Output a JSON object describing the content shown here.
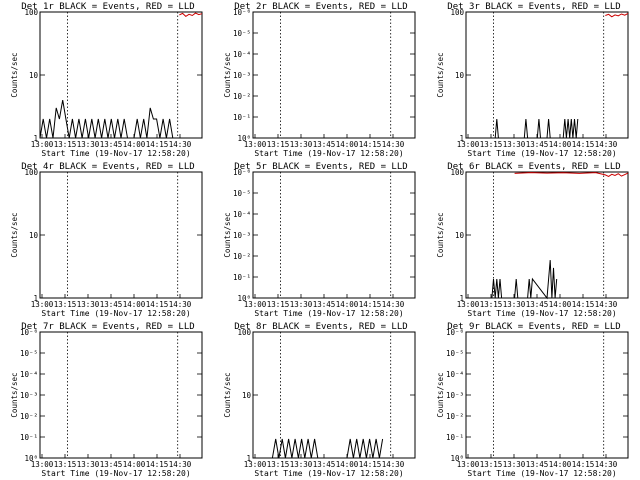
{
  "chart_data": [
    {
      "type": "line",
      "title": "Det 1r BLACK = Events, RED = LLD",
      "xlabel": "Start Time (19-Nov-17 12:58:20)",
      "ylabel": "Counts/sec",
      "yscale": "log",
      "yticks": [
        "1",
        "10",
        "100"
      ],
      "xticks": [
        "13:00",
        "13:15",
        "13:30",
        "13:45",
        "14:00",
        "14:15",
        "14:30"
      ],
      "ylim": [
        1,
        100
      ],
      "xlim": [
        0,
        100
      ],
      "grid": false,
      "series": [
        {
          "name": "Events",
          "color": "#000000",
          "x": [
            0,
            2,
            4,
            6,
            8,
            10,
            12,
            14,
            16,
            18,
            20,
            22,
            24,
            26,
            28,
            30,
            32,
            34,
            36,
            38,
            40,
            42,
            44,
            46,
            48,
            50,
            52,
            54,
            56,
            58,
            60,
            62,
            64,
            66,
            68,
            70,
            72,
            74,
            76,
            78,
            80,
            82,
            84,
            86
          ],
          "y": [
            1,
            2,
            1,
            2,
            1,
            3,
            2,
            4,
            2,
            1,
            2,
            1,
            2,
            1,
            2,
            1,
            2,
            1,
            2,
            1,
            2,
            1,
            2,
            1,
            2,
            1,
            2,
            1,
            1,
            1,
            2,
            1,
            2,
            1,
            3,
            2,
            2,
            1,
            2,
            1,
            2,
            1,
            1,
            1
          ]
        },
        {
          "name": "LLD",
          "color": "#cc0000",
          "x": [
            86,
            88,
            90,
            92,
            94,
            96,
            98,
            100
          ],
          "y": [
            90,
            95,
            85,
            92,
            88,
            96,
            91,
            94
          ]
        }
      ]
    },
    {
      "type": "line",
      "title": "Det 2r BLACK = Events, RED = LLD",
      "xlabel": "Start Time (19-Nov-17 12:58:20)",
      "ylabel": "Counts/sec",
      "yscale": "log",
      "yticks": [
        "10⁰",
        "10⁻¹",
        "10⁻²",
        "10⁻³",
        "10⁻⁴",
        "10⁻⁵",
        "10⁻⁶"
      ],
      "xticks": [
        "13:00",
        "13:15",
        "13:30",
        "13:45",
        "14:00",
        "14:15",
        "14:30"
      ],
      "ylim": [
        1,
        1e-06
      ],
      "xlim": [
        0,
        100
      ],
      "grid": false,
      "series": [
        {
          "name": "Events",
          "color": "#000000",
          "x": [
            0,
            100
          ],
          "y": [
            1,
            1
          ]
        }
      ]
    },
    {
      "type": "line",
      "title": "Det 3r BLACK = Events, RED = LLD",
      "xlabel": "Start Time (19-Nov-17 12:58:20)",
      "ylabel": "Counts/sec",
      "yscale": "log",
      "yticks": [
        "1",
        "10",
        "100"
      ],
      "xticks": [
        "13:00",
        "13:15",
        "13:30",
        "13:45",
        "14:00",
        "14:15",
        "14:30"
      ],
      "ylim": [
        1,
        100
      ],
      "xlim": [
        0,
        100
      ],
      "grid": false,
      "series": [
        {
          "name": "Events",
          "color": "#000000",
          "x": [
            18,
            19,
            20,
            36,
            37,
            38,
            44,
            45,
            46,
            50,
            51,
            52,
            60,
            61,
            62,
            63,
            64,
            65,
            66,
            67,
            68,
            69
          ],
          "y": [
            1,
            2,
            1,
            1,
            2,
            1,
            1,
            2,
            1,
            1,
            2,
            1,
            1,
            2,
            1,
            2,
            1,
            2,
            1,
            2,
            1,
            2
          ]
        },
        {
          "name": "LLD",
          "color": "#cc0000",
          "x": [
            86,
            88,
            90,
            92,
            94,
            96,
            98,
            100
          ],
          "y": [
            88,
            92,
            84,
            90,
            87,
            93,
            89,
            95
          ]
        }
      ]
    },
    {
      "type": "line",
      "title": "Det 4r BLACK = Events, RED = LLD",
      "xlabel": "Start Time (19-Nov-17 12:58:20)",
      "ylabel": "Counts/sec",
      "yscale": "log",
      "yticks": [
        "1",
        "10",
        "100"
      ],
      "xticks": [
        "13:00",
        "13:15",
        "13:30",
        "13:45",
        "14:00",
        "14:15",
        "14:30"
      ],
      "ylim": [
        1,
        100
      ],
      "xlim": [
        0,
        100
      ],
      "grid": false,
      "series": [
        {
          "name": "Events",
          "color": "#000000",
          "x": [
            0,
            100
          ],
          "y": [
            1,
            1
          ]
        }
      ]
    },
    {
      "type": "line",
      "title": "Det 5r BLACK = Events, RED = LLD",
      "xlabel": "Start Time (19-Nov-17 12:58:20)",
      "ylabel": "Counts/sec",
      "yscale": "log",
      "yticks": [
        "10⁰",
        "10⁻¹",
        "10⁻²",
        "10⁻³",
        "10⁻⁴",
        "10⁻⁵",
        "10⁻⁶"
      ],
      "xticks": [
        "13:00",
        "13:15",
        "13:30",
        "13:45",
        "14:00",
        "14:15",
        "14:30"
      ],
      "ylim": [
        1,
        1e-06
      ],
      "xlim": [
        0,
        100
      ],
      "grid": false,
      "series": [
        {
          "name": "Events",
          "color": "#000000",
          "x": [
            0,
            100
          ],
          "y": [
            1,
            1
          ]
        }
      ]
    },
    {
      "type": "line",
      "title": "Det 6r BLACK = Events, RED = LLD",
      "xlabel": "Start Time (19-Nov-17 12:58:20)",
      "ylabel": "Counts/sec",
      "yscale": "log",
      "yticks": [
        "1",
        "10",
        "100"
      ],
      "xticks": [
        "13:00",
        "13:15",
        "13:30",
        "13:45",
        "14:00",
        "14:15",
        "14:30"
      ],
      "ylim": [
        1,
        100
      ],
      "xlim": [
        0,
        100
      ],
      "grid": false,
      "series": [
        {
          "name": "Events",
          "color": "#000000",
          "x": [
            16,
            17,
            18,
            19,
            20,
            21,
            22,
            30,
            31,
            32,
            38,
            39,
            40,
            41,
            50,
            51,
            52,
            53,
            54,
            55,
            56
          ],
          "y": [
            1,
            2,
            1,
            2,
            1,
            2,
            1,
            1,
            2,
            1,
            1,
            2,
            1,
            2,
            1,
            2,
            4,
            1,
            3,
            1,
            2
          ]
        },
        {
          "name": "LLD",
          "color": "#cc0000",
          "x": [
            30,
            40,
            50,
            60,
            70,
            80,
            86,
            88,
            90,
            92,
            94,
            96,
            98,
            100
          ],
          "y": [
            95,
            98,
            96,
            97,
            95,
            98,
            90,
            85,
            92,
            88,
            94,
            86,
            91,
            96
          ]
        }
      ]
    },
    {
      "type": "line",
      "title": "Det 7r BLACK = Events, RED = LLD",
      "xlabel": "Start Time (19-Nov-17 12:58:20)",
      "ylabel": "Counts/sec",
      "yscale": "log",
      "yticks": [
        "10⁰",
        "10⁻¹",
        "10⁻²",
        "10⁻³",
        "10⁻⁴",
        "10⁻⁵",
        "10⁻⁶"
      ],
      "xticks": [
        "13:00",
        "13:15",
        "13:30",
        "13:45",
        "14:00",
        "14:15",
        "14:30"
      ],
      "ylim": [
        1,
        1e-06
      ],
      "xlim": [
        0,
        100
      ],
      "grid": false,
      "series": [
        {
          "name": "Events",
          "color": "#000000",
          "x": [
            0,
            100
          ],
          "y": [
            1,
            1
          ]
        }
      ]
    },
    {
      "type": "line",
      "title": "Det 8r BLACK = Events, RED = LLD",
      "xlabel": "Start Time (19-Nov-17 12:58:20)",
      "ylabel": "Counts/sec",
      "yscale": "log",
      "yticks": [
        "1",
        "10",
        "100"
      ],
      "xticks": [
        "13:00",
        "13:15",
        "13:30",
        "13:45",
        "14:00",
        "14:15",
        "14:30"
      ],
      "ylim": [
        1,
        100
      ],
      "xlim": [
        0,
        100
      ],
      "grid": false,
      "series": [
        {
          "name": "Events",
          "color": "#000000",
          "x": [
            0,
            2,
            4,
            6,
            8,
            10,
            12,
            14,
            16,
            18,
            20,
            22,
            24,
            26,
            28,
            30,
            32,
            34,
            36,
            38,
            40,
            42,
            44,
            46,
            48,
            50,
            52,
            54,
            56,
            58,
            60,
            62,
            64,
            66,
            68,
            70,
            72,
            74,
            76,
            78,
            80
          ],
          "y": [
            1,
            1,
            1,
            1,
            1,
            1,
            1,
            2,
            1,
            2,
            1,
            2,
            1,
            2,
            1,
            2,
            1,
            2,
            1,
            2,
            1,
            1,
            1,
            1,
            1,
            1,
            1,
            1,
            1,
            1,
            2,
            1,
            2,
            1,
            2,
            1,
            2,
            1,
            2,
            1,
            2
          ]
        }
      ]
    },
    {
      "type": "line",
      "title": "Det 9r BLACK = Events, RED = LLD",
      "xlabel": "Start Time (19-Nov-17 12:58:20)",
      "ylabel": "Counts/sec",
      "yscale": "log",
      "yticks": [
        "10⁰",
        "10⁻¹",
        "10⁻²",
        "10⁻³",
        "10⁻⁴",
        "10⁻⁵",
        "10⁻⁶"
      ],
      "xticks": [
        "13:00",
        "13:15",
        "13:30",
        "13:45",
        "14:00",
        "14:15",
        "14:30"
      ],
      "ylim": [
        1,
        1e-06
      ],
      "xlim": [
        0,
        100
      ],
      "grid": false,
      "series": [
        {
          "name": "Events",
          "color": "#000000",
          "x": [
            0,
            100
          ],
          "y": [
            1,
            1
          ]
        }
      ]
    }
  ]
}
